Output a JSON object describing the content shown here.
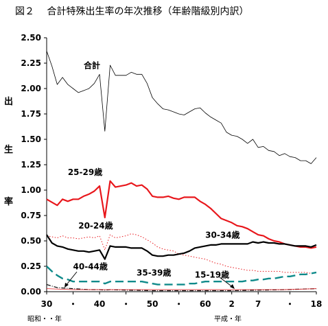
{
  "chart_data": {
    "type": "line",
    "title": "図２　 合計特殊出生率の年次推移（年齢階級別内訳）",
    "ylabel": [
      "出",
      "生",
      "率"
    ],
    "ylim": [
      0,
      2.5
    ],
    "yticks": [
      "0.00",
      "0.25",
      "0.50",
      "0.75",
      "1.00",
      "1.25",
      "1.50",
      "1.75",
      "2.00",
      "2.25",
      "2.50"
    ],
    "xlim": [
      1955,
      2006
    ],
    "xticks": [
      {
        "year": 1955,
        "label": "30"
      },
      {
        "year": 1960,
        "label": "・"
      },
      {
        "year": 1965,
        "label": "40"
      },
      {
        "year": 1970,
        "label": "・"
      },
      {
        "year": 1975,
        "label": "50"
      },
      {
        "year": 1980,
        "label": "・"
      },
      {
        "year": 1985,
        "label": "60"
      },
      {
        "year": 1990,
        "label": "2"
      },
      {
        "year": 1995,
        "label": "7"
      },
      {
        "year": 2001,
        "label": "・"
      },
      {
        "year": 2006,
        "label": "18"
      }
    ],
    "era_labels": {
      "showa": "昭和・・年",
      "heisei": "平成・年"
    },
    "grid": false,
    "series": [
      {
        "name": "合計",
        "color": "#000000",
        "style": "thin",
        "x": [
          1955,
          1956,
          1957,
          1958,
          1959,
          1960,
          1961,
          1962,
          1963,
          1964,
          1965,
          1966,
          1967,
          1968,
          1969,
          1970,
          1971,
          1972,
          1973,
          1974,
          1975,
          1976,
          1977,
          1978,
          1979,
          1980,
          1981,
          1982,
          1983,
          1984,
          1985,
          1986,
          1987,
          1988,
          1989,
          1990,
          1991,
          1992,
          1993,
          1994,
          1995,
          1996,
          1997,
          1998,
          1999,
          2000,
          2001,
          2002,
          2003,
          2004,
          2005,
          2006
        ],
        "values": [
          2.37,
          2.22,
          2.04,
          2.11,
          2.04,
          2.0,
          1.96,
          1.98,
          2.0,
          2.05,
          2.14,
          1.58,
          2.23,
          2.13,
          2.13,
          2.13,
          2.16,
          2.14,
          2.14,
          2.05,
          1.91,
          1.85,
          1.8,
          1.79,
          1.77,
          1.75,
          1.74,
          1.77,
          1.8,
          1.81,
          1.76,
          1.72,
          1.69,
          1.66,
          1.57,
          1.54,
          1.53,
          1.5,
          1.46,
          1.5,
          1.42,
          1.43,
          1.39,
          1.38,
          1.34,
          1.36,
          1.33,
          1.32,
          1.29,
          1.29,
          1.26,
          1.32
        ]
      },
      {
        "name": "25-29歳",
        "color": "#e8161b",
        "style": "thick",
        "x": [
          1955,
          1957,
          1958,
          1959,
          1960,
          1961,
          1962,
          1963,
          1964,
          1965,
          1966,
          1967,
          1968,
          1969,
          1970,
          1971,
          1972,
          1973,
          1974,
          1975,
          1976,
          1977,
          1978,
          1979,
          1980,
          1981,
          1982,
          1983,
          1984,
          1985,
          1986,
          1987,
          1988,
          1989,
          1990,
          1991,
          1992,
          1993,
          1994,
          1995,
          1996,
          1997,
          1998,
          1999,
          2000,
          2001,
          2002,
          2003,
          2004,
          2005,
          2006
        ],
        "values": [
          0.91,
          0.85,
          0.91,
          0.89,
          0.91,
          0.91,
          0.94,
          0.96,
          0.99,
          1.04,
          0.73,
          1.09,
          1.03,
          1.04,
          1.05,
          1.07,
          1.04,
          1.05,
          1.01,
          0.94,
          0.93,
          0.93,
          0.94,
          0.92,
          0.91,
          0.93,
          0.93,
          0.93,
          0.89,
          0.86,
          0.82,
          0.77,
          0.72,
          0.7,
          0.68,
          0.65,
          0.64,
          0.62,
          0.59,
          0.56,
          0.55,
          0.52,
          0.5,
          0.49,
          0.47,
          0.46,
          0.45,
          0.44,
          0.44,
          0.43,
          0.44
        ]
      },
      {
        "name": "20-24歳",
        "color": "#e8161b",
        "style": "dotted",
        "x": [
          1955,
          1957,
          1958,
          1959,
          1960,
          1961,
          1962,
          1963,
          1964,
          1965,
          1966,
          1967,
          1968,
          1969,
          1970,
          1971,
          1972,
          1973,
          1974,
          1975,
          1976,
          1977,
          1978,
          1979,
          1980,
          1981,
          1982,
          1983,
          1984,
          1985,
          1986,
          1987,
          1988,
          1989,
          1990,
          1991,
          1992,
          1993,
          1994,
          1995,
          1996,
          1997,
          1998,
          1999,
          2000,
          2001,
          2002,
          2003,
          2004,
          2005,
          2006
        ],
        "values": [
          0.55,
          0.53,
          0.55,
          0.53,
          0.53,
          0.52,
          0.53,
          0.54,
          0.53,
          0.55,
          0.41,
          0.56,
          0.53,
          0.54,
          0.55,
          0.57,
          0.56,
          0.54,
          0.51,
          0.48,
          0.44,
          0.42,
          0.41,
          0.4,
          0.37,
          0.36,
          0.35,
          0.34,
          0.33,
          0.32,
          0.3,
          0.28,
          0.27,
          0.25,
          0.24,
          0.23,
          0.22,
          0.21,
          0.21,
          0.2,
          0.2,
          0.2,
          0.2,
          0.2,
          0.19,
          0.19,
          0.19,
          0.19,
          0.19,
          0.18,
          0.19
        ]
      },
      {
        "name": "30-34歳",
        "color": "#000000",
        "style": "thick",
        "x": [
          1955,
          1956,
          1957,
          1958,
          1959,
          1960,
          1961,
          1962,
          1963,
          1964,
          1965,
          1966,
          1967,
          1968,
          1969,
          1970,
          1971,
          1972,
          1973,
          1974,
          1975,
          1976,
          1977,
          1978,
          1979,
          1980,
          1981,
          1982,
          1983,
          1984,
          1985,
          1986,
          1987,
          1988,
          1989,
          1990,
          1991,
          1992,
          1993,
          1994,
          1995,
          1996,
          1997,
          1998,
          1999,
          2000,
          2001,
          2002,
          2003,
          2004,
          2005,
          2006
        ],
        "values": [
          0.56,
          0.48,
          0.45,
          0.44,
          0.42,
          0.41,
          0.4,
          0.4,
          0.39,
          0.4,
          0.41,
          0.32,
          0.45,
          0.44,
          0.44,
          0.44,
          0.43,
          0.43,
          0.43,
          0.4,
          0.36,
          0.35,
          0.35,
          0.36,
          0.36,
          0.37,
          0.38,
          0.4,
          0.43,
          0.44,
          0.45,
          0.46,
          0.46,
          0.47,
          0.47,
          0.47,
          0.47,
          0.47,
          0.47,
          0.49,
          0.48,
          0.49,
          0.48,
          0.48,
          0.47,
          0.47,
          0.46,
          0.45,
          0.45,
          0.45,
          0.44,
          0.46
        ]
      },
      {
        "name": "35-39歳",
        "color": "#0f8a8a",
        "style": "dashed",
        "x": [
          1955,
          1956,
          1957,
          1958,
          1959,
          1960,
          1961,
          1962,
          1963,
          1964,
          1965,
          1966,
          1967,
          1968,
          1969,
          1970,
          1971,
          1972,
          1973,
          1974,
          1975,
          1976,
          1977,
          1978,
          1979,
          1980,
          1981,
          1982,
          1983,
          1984,
          1985,
          1986,
          1987,
          1988,
          1989,
          1990,
          1991,
          1992,
          1993,
          1994,
          1995,
          1996,
          1997,
          1998,
          1999,
          2000,
          2001,
          2002,
          2003,
          2004,
          2005,
          2006
        ],
        "values": [
          0.25,
          0.2,
          0.16,
          0.13,
          0.12,
          0.1,
          0.1,
          0.1,
          0.1,
          0.1,
          0.1,
          0.08,
          0.1,
          0.1,
          0.1,
          0.1,
          0.1,
          0.1,
          0.1,
          0.09,
          0.08,
          0.07,
          0.07,
          0.07,
          0.07,
          0.07,
          0.07,
          0.08,
          0.08,
          0.09,
          0.1,
          0.1,
          0.1,
          0.1,
          0.1,
          0.1,
          0.1,
          0.1,
          0.11,
          0.11,
          0.12,
          0.12,
          0.13,
          0.13,
          0.14,
          0.15,
          0.15,
          0.16,
          0.17,
          0.17,
          0.18,
          0.19
        ]
      },
      {
        "name": "40-44歳",
        "color": "#000000",
        "style": "dashdot",
        "x": [
          1955,
          1957,
          1960,
          1963,
          1965,
          1966,
          1967,
          1970,
          1975,
          1980,
          1985,
          1990,
          1995,
          2000,
          2006
        ],
        "values": [
          0.07,
          0.04,
          0.03,
          0.02,
          0.02,
          0.015,
          0.02,
          0.015,
          0.01,
          0.01,
          0.01,
          0.01,
          0.015,
          0.02,
          0.03
        ]
      },
      {
        "name": "15-19歳",
        "color": "#e8161b",
        "style": "thin",
        "x": [
          1955,
          1960,
          1965,
          1970,
          1975,
          1980,
          1985,
          1990,
          1995,
          2000,
          2006
        ],
        "values": [
          0.03,
          0.02,
          0.02,
          0.02,
          0.02,
          0.02,
          0.02,
          0.02,
          0.02,
          0.02,
          0.03
        ]
      }
    ],
    "annotations": [
      {
        "text": "合計",
        "at_year": 1962,
        "at_value": 2.2
      },
      {
        "text": "25-29歳",
        "at_year": 1959,
        "at_value": 1.15
      },
      {
        "text": "20-24歳",
        "at_year": 1961,
        "at_value": 0.62
      },
      {
        "text": "30-34歳",
        "at_year": 1985,
        "at_value": 0.53
      },
      {
        "text": "40-44歳",
        "at_year": 1960,
        "at_value": 0.22
      },
      {
        "text": "35-39歳",
        "at_year": 1972,
        "at_value": 0.16
      },
      {
        "text": "15-19歳",
        "at_year": 1983,
        "at_value": 0.14
      }
    ]
  }
}
